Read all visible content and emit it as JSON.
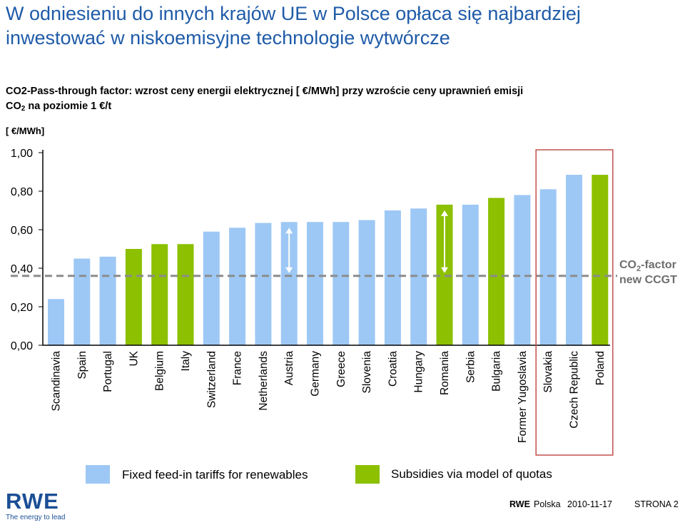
{
  "slide": {
    "title": "W odniesieniu do innych krajów UE w Polsce opłaca się najbardziej inwestować w niskoemisyjne technologie wytwórcze",
    "subtitle_line1": "CO2-Pass-through factor: wzrost ceny energii elektrycznej [ €/MWh] przy wzroście ceny uprawnień emisji",
    "subtitle_co": "CO",
    "subtitle_sub": "2",
    "subtitle_rest": " na poziomie 1 €/t",
    "unit_label": "[ €/MWh]"
  },
  "chart_data": {
    "type": "bar",
    "title": "CO2-Pass-through factor",
    "ylabel": "[ €/MWh]",
    "ylim": [
      0,
      1.0
    ],
    "yticks": [
      "1,00",
      "0,80",
      "0,60",
      "0,40",
      "0,20",
      "0,00"
    ],
    "ytick_values": [
      1.0,
      0.8,
      0.6,
      0.4,
      0.2,
      0.0
    ],
    "categories": [
      "Scandinavia",
      "Spain",
      "Portugal",
      "UK",
      "Belgium",
      "Italy",
      "Switzerland",
      "France",
      "Netherlands",
      "Austria",
      "Germany",
      "Greece",
      "Slovenia",
      "Croatia",
      "Hungary",
      "Romania",
      "Serbia",
      "Bulgaria",
      "Former Yugoslavia",
      "Slovakia",
      "Czech Republic",
      "Poland"
    ],
    "values": [
      0.24,
      0.45,
      0.46,
      0.5,
      0.525,
      0.525,
      0.59,
      0.61,
      0.635,
      0.64,
      0.64,
      0.64,
      0.65,
      0.7,
      0.71,
      0.73,
      0.73,
      0.765,
      0.78,
      0.81,
      0.885,
      0.885
    ],
    "groups": [
      "fixed",
      "fixed",
      "fixed",
      "quota",
      "quota",
      "quota",
      "fixed",
      "fixed",
      "fixed",
      "fixed",
      "fixed",
      "fixed",
      "fixed",
      "fixed",
      "fixed",
      "quota",
      "fixed",
      "quota",
      "fixed",
      "fixed",
      "fixed",
      "quota"
    ],
    "reference_line": {
      "value": 0.36,
      "label_co": "CO",
      "label_sub": "2",
      "label_rest": "-factor",
      "label_line2": "new CCGT"
    },
    "legend": [
      {
        "key": "fixed",
        "label": "Fixed feed-in tariffs for renewables",
        "color": "#9dc8f5"
      },
      {
        "key": "quota",
        "label": "Subsidies via model of quotas",
        "color": "#8cc000"
      }
    ]
  },
  "colors": {
    "fixed": "#9dc8f5",
    "quota": "#8cc000",
    "title": "#1f5ba8",
    "highlight_box": "#c0504d",
    "reference_line": "#8c8c8c"
  },
  "logo": {
    "name": "RWE",
    "tagline": "The energy to lead"
  },
  "footer": {
    "brand": "RWE",
    "country": "Polska",
    "date": "2010-11-17",
    "page": "STRONA 2"
  }
}
